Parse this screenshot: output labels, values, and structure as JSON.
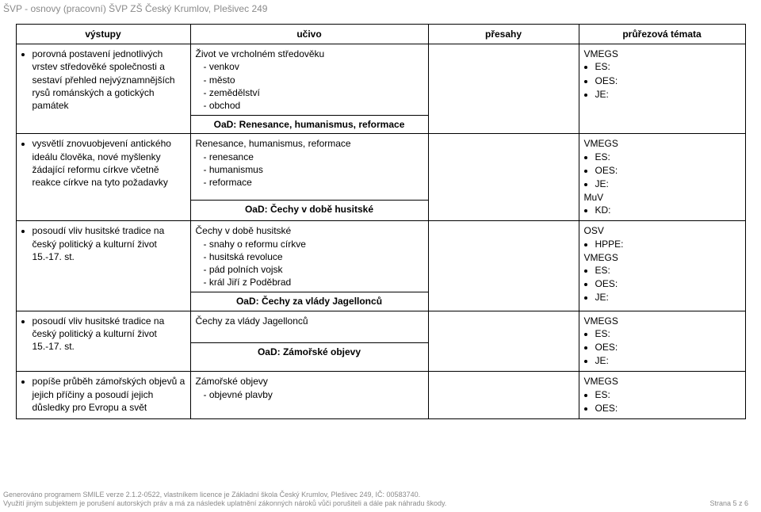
{
  "header": "ŠVP - osnovy (pracovní) ŠVP ZŠ Český Krumlov, Plešivec 249",
  "cols": {
    "v": "výstupy",
    "u": "učivo",
    "p": "přesahy",
    "t": "průřezová témata"
  },
  "sections": {
    "s1": "OaD: Renesance, humanismus, reformace",
    "s2": "OaD: Čechy v době husitské",
    "s3": "OaD: Čechy za vlády Jagellonců",
    "s4": "OaD: Zámořské objevy"
  },
  "r1": {
    "v": "porovná postavení jednotlivých vrstev středověké společnosti a sestaví přehled nejvýznamnějších rysů románských a gotických památek",
    "u_title": "Život ve vrcholném středověku",
    "u1": "- venkov",
    "u2": "- město",
    "u3": "- zemědělství",
    "u4": "- obchod",
    "t_code": "VMEGS",
    "t_b1": "ES:",
    "t_b2": "OES:",
    "t_b3": "JE:"
  },
  "r2": {
    "v": "vysvětlí znovuobjevení antického ideálu člověka, nové myšlenky žádající reformu církve včetně reakce církve na tyto požadavky",
    "u_title": "Renesance, humanismus, reformace",
    "u1": "- renesance",
    "u2": "- humanismus",
    "u3": "- reformace",
    "t_code1": "VMEGS",
    "t_b1": "ES:",
    "t_b2": "OES:",
    "t_b3": "JE:",
    "t_code2": "MuV",
    "t_b4": "KD:"
  },
  "r3": {
    "v": "posoudí vliv husitské tradice na český politický a kulturní život 15.-17. st.",
    "u_title": "Čechy v době husitské",
    "u1": "- snahy o reformu církve",
    "u2": "- husitská revoluce",
    "u3": "- pád polních vojsk",
    "u4": "- král Jiří z Poděbrad",
    "t_code1": "OSV",
    "t_b1": "HPPE:",
    "t_code2": "VMEGS",
    "t_b2": "ES:",
    "t_b3": "OES:",
    "t_b4": "JE:"
  },
  "r4": {
    "v": "posoudí vliv husitské tradice na český politický a kulturní život 15.-17. st.",
    "u_title": "Čechy za vlády Jagellonců",
    "t_code": "VMEGS",
    "t_b1": "ES:",
    "t_b2": "OES:",
    "t_b3": "JE:"
  },
  "r5": {
    "v": "popíše průběh zámořských objevů a jejich příčiny a posoudí jejich důsledky pro Evropu a svět",
    "u_title": "Zámořské objevy",
    "u1": "- objevné plavby",
    "t_code": "VMEGS",
    "t_b1": "ES:",
    "t_b2": "OES:"
  },
  "footer": {
    "line1": "Generováno programem SMILE verze 2.1.2-0522, vlastníkem licence je Základní škola Český Krumlov, Plešivec 249, IČ: 00583740.",
    "line2": "Využití jiným subjektem je porušení autorských práv a má za následek uplatnění zákonných nároků vůči porušiteli a dále pak náhradu škody.",
    "page": "Strana 5 z 6"
  }
}
